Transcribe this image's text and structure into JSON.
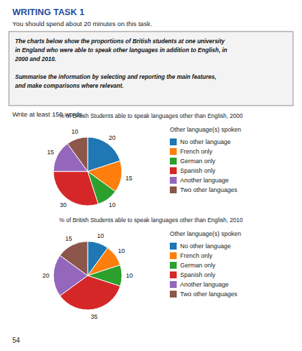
{
  "title": "WRITING TASK 1",
  "subtitle": "You should spend about 20 minutes on this task.",
  "annotations": [
    "The charts below show the proportions of British students at one university",
    "in England who were able to speak other languages in addition to English, in",
    "2000 and 2010.",
    "Summarise the information by selecting and reporting the main features,",
    "and make comparisons where relevant.",
    "Write at least 150 words.",
    "54"
  ],
  "chart_data": [
    {
      "type": "pie",
      "title": "% of British Students able to speak languages other than English, 2000",
      "categories": [
        "No other language",
        "French only",
        "German only",
        "Spanish only",
        "Another language",
        "Two other languages"
      ],
      "values": [
        20,
        15,
        10,
        30,
        15,
        10
      ],
      "legend_title": "Other language(s) spoken",
      "legend": "right",
      "data_labels": true
    },
    {
      "type": "pie",
      "title": "% of British Students able to speak languages other than English, 2010",
      "categories": [
        "No other language",
        "French only",
        "German only",
        "Spanish only",
        "Another language",
        "Two other languages"
      ],
      "values": [
        10,
        10,
        10,
        35,
        20,
        15
      ],
      "legend_title": "Other language(s) spoken",
      "legend": "right",
      "data_labels": true
    }
  ]
}
